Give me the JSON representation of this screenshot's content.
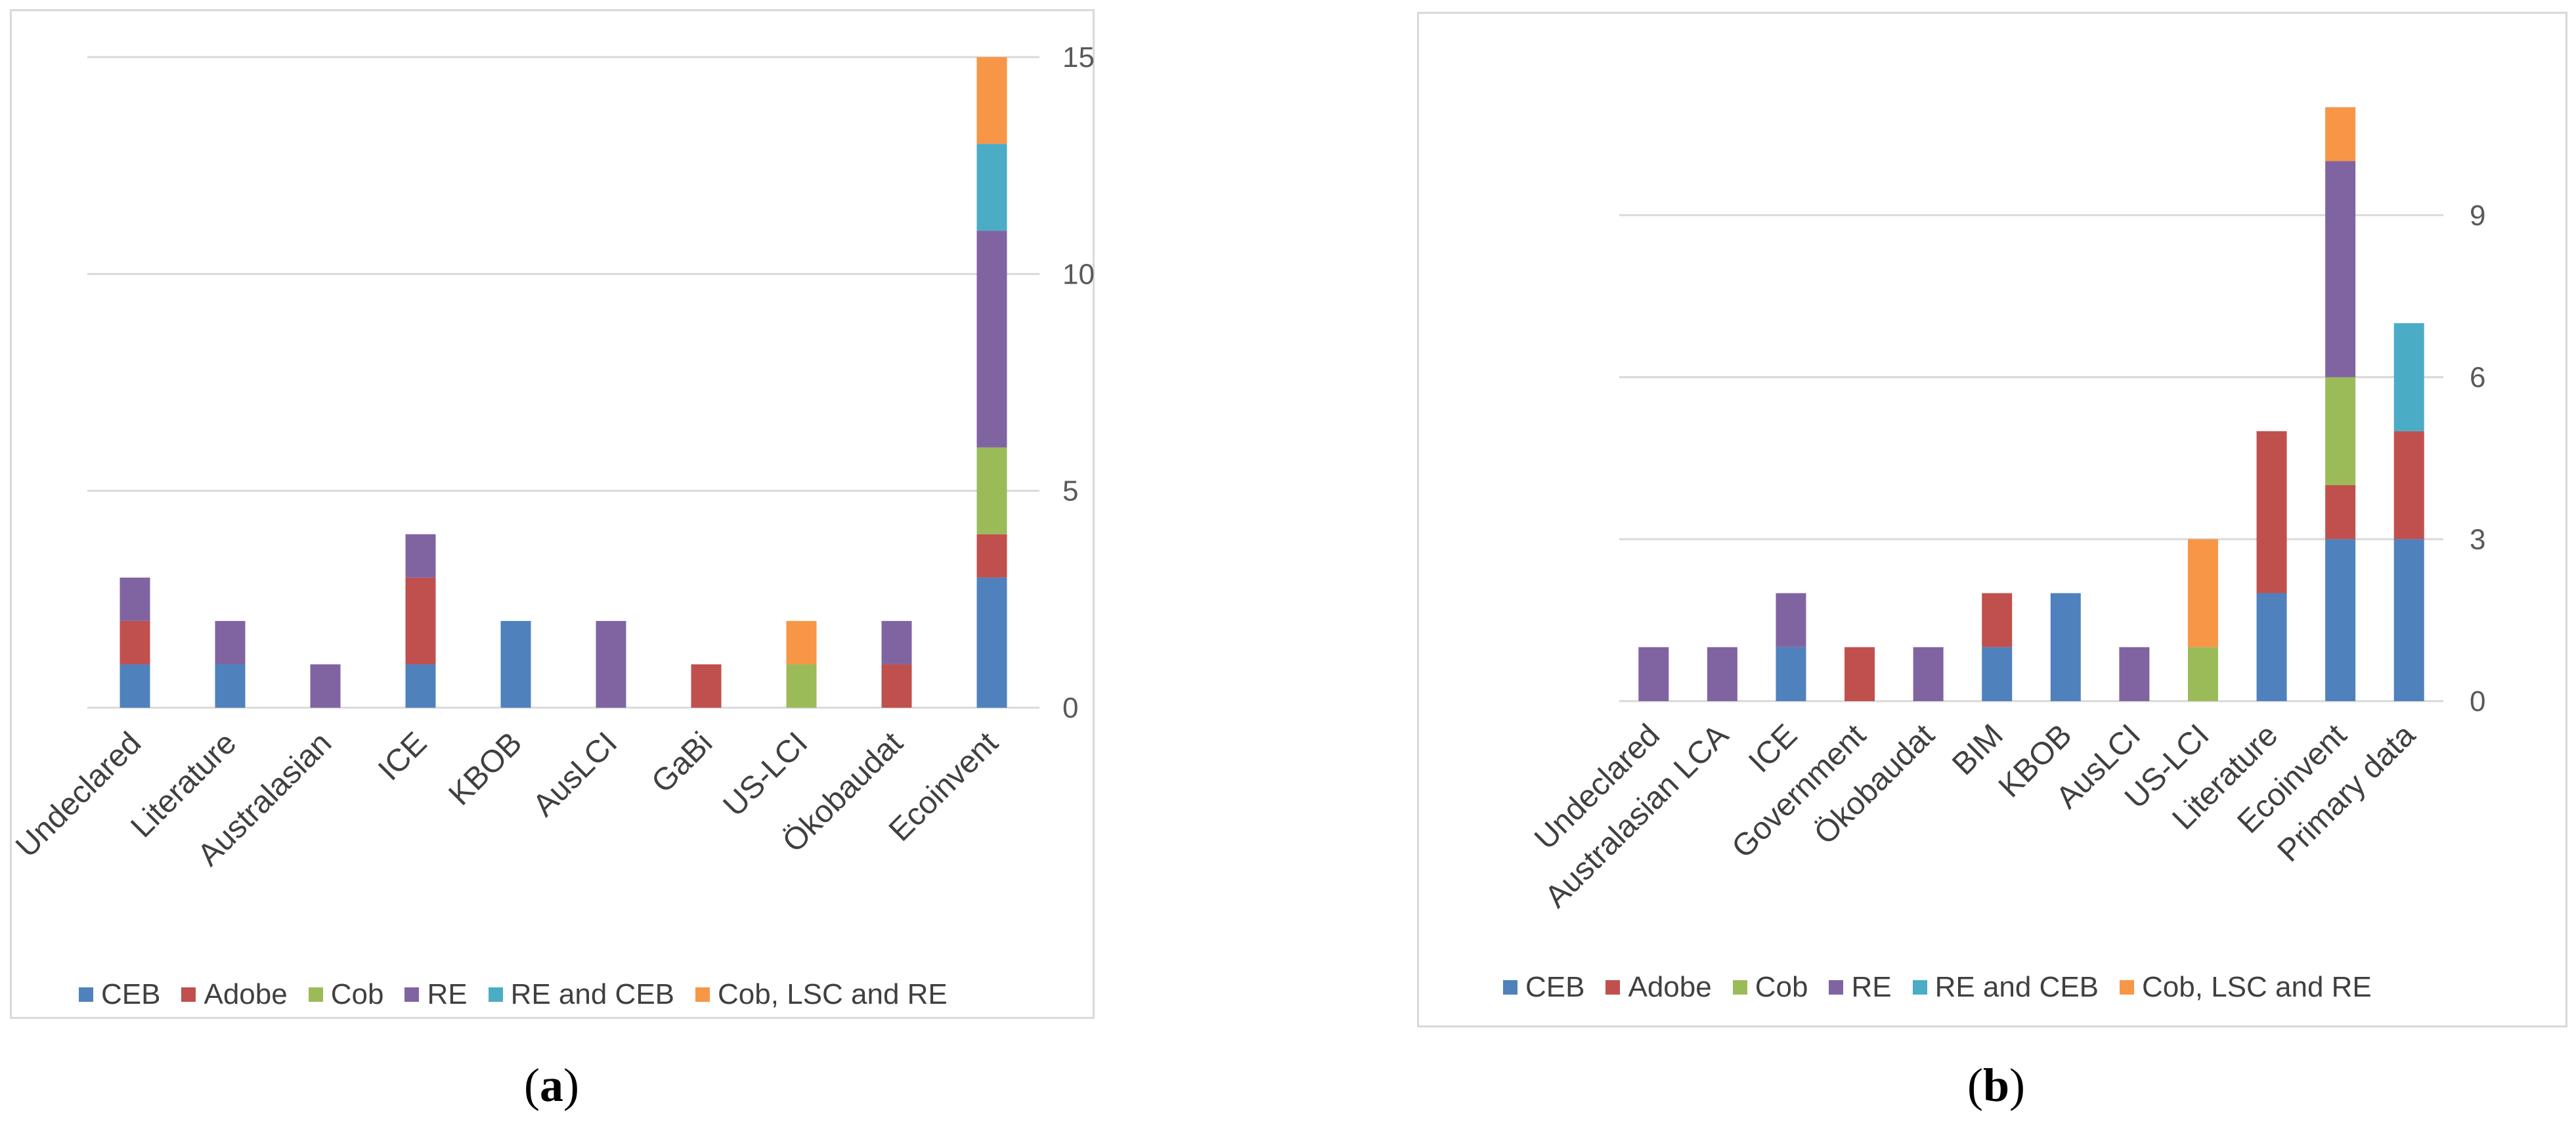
{
  "panel_a_label": "a",
  "panel_b_label": "b",
  "legend": [
    {
      "name": "CEB",
      "color": "#4f81bd"
    },
    {
      "name": "Adobe",
      "color": "#c0504d"
    },
    {
      "name": "Cob",
      "color": "#9bbb59"
    },
    {
      "name": "RE",
      "color": "#8064a2"
    },
    {
      "name": "RE and CEB",
      "color": "#4bacc6"
    },
    {
      "name": "Cob, LSC and RE",
      "color": "#f79646"
    }
  ],
  "chart_data": [
    {
      "type": "bar",
      "stacked": true,
      "categories": [
        "Undeclared",
        "Literature",
        "Australasian",
        "ICE",
        "KBOB",
        "AusLCI",
        "GaBi",
        "US-LCI",
        "Ökobaudat",
        "Ecoinvent"
      ],
      "series": [
        {
          "name": "CEB",
          "values": [
            1,
            1,
            0,
            1,
            2,
            0,
            0,
            0,
            0,
            3
          ]
        },
        {
          "name": "Adobe",
          "values": [
            1,
            0,
            0,
            2,
            0,
            0,
            1,
            0,
            1,
            1
          ]
        },
        {
          "name": "Cob",
          "values": [
            0,
            0,
            0,
            0,
            0,
            0,
            0,
            1,
            0,
            2
          ]
        },
        {
          "name": "RE",
          "values": [
            1,
            1,
            1,
            1,
            0,
            2,
            0,
            0,
            1,
            5
          ]
        },
        {
          "name": "RE and CEB",
          "values": [
            0,
            0,
            0,
            0,
            0,
            0,
            0,
            0,
            0,
            2
          ]
        },
        {
          "name": "Cob, LSC and RE",
          "values": [
            0,
            0,
            0,
            0,
            0,
            0,
            0,
            1,
            0,
            2
          ]
        }
      ],
      "yticks": [
        "0",
        "5",
        "10",
        "15"
      ],
      "ylim": [
        0,
        15
      ],
      "axis_side": "right",
      "grid": true,
      "legend": "bottom"
    },
    {
      "type": "bar",
      "stacked": true,
      "categories": [
        "Undeclared",
        "Australasian LCA",
        "ICE",
        "Government",
        "Ökobaudat",
        "BIM",
        "KBOB",
        "AusLCI",
        "US-LCI",
        "Literature",
        "Ecoinvent",
        "Primary data"
      ],
      "series": [
        {
          "name": "CEB",
          "values": [
            0,
            0,
            1,
            0,
            0,
            1,
            2,
            0,
            0,
            2,
            3,
            3
          ]
        },
        {
          "name": "Adobe",
          "values": [
            0,
            0,
            0,
            1,
            0,
            1,
            0,
            0,
            0,
            3,
            1,
            2
          ]
        },
        {
          "name": "Cob",
          "values": [
            0,
            0,
            0,
            0,
            0,
            0,
            0,
            0,
            1,
            0,
            2,
            0
          ]
        },
        {
          "name": "RE",
          "values": [
            1,
            1,
            1,
            0,
            1,
            0,
            0,
            1,
            0,
            0,
            4,
            0
          ]
        },
        {
          "name": "RE and CEB",
          "values": [
            0,
            0,
            0,
            0,
            0,
            0,
            0,
            0,
            0,
            0,
            0,
            2
          ]
        },
        {
          "name": "Cob, LSC and RE",
          "values": [
            0,
            0,
            0,
            0,
            0,
            0,
            0,
            0,
            2,
            0,
            1,
            0
          ]
        }
      ],
      "yticks": [
        "0",
        "3",
        "6",
        "9"
      ],
      "ylim": [
        0,
        12
      ],
      "axis_side": "right",
      "grid": true,
      "legend": "bottom"
    }
  ]
}
